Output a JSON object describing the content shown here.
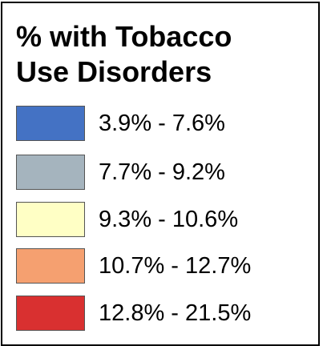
{
  "legend": {
    "title_line1": "% with Tobacco",
    "title_line2": "Use Disorders",
    "items": [
      {
        "label": "3.9% - 7.6%",
        "color": "#4472c4"
      },
      {
        "label": "7.7% - 9.2%",
        "color": "#a5b4be"
      },
      {
        "label": "9.3% - 10.6%",
        "color": "#ffffc5"
      },
      {
        "label": "10.7% - 12.7%",
        "color": "#f5a070"
      },
      {
        "label": "12.8% - 21.5%",
        "color": "#d93030"
      }
    ]
  }
}
